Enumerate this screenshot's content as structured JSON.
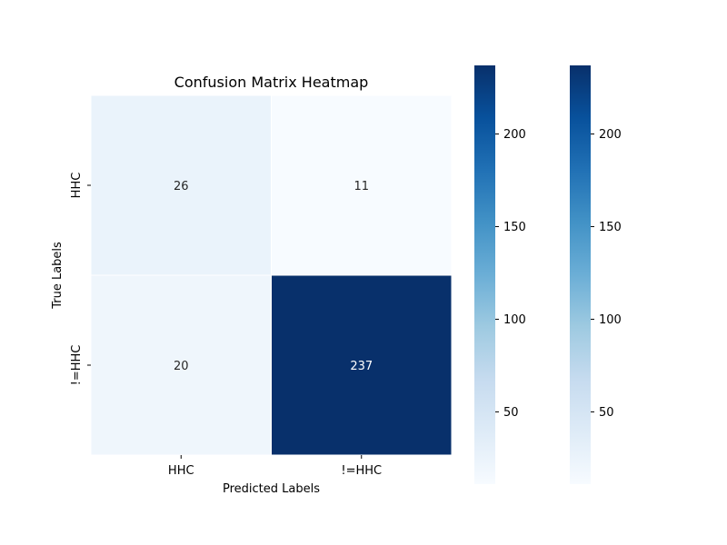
{
  "chart_data": {
    "type": "heatmap",
    "title": "Confusion Matrix Heatmap",
    "xlabel": "Predicted Labels",
    "ylabel": "True Labels",
    "x_categories": [
      "HHC",
      "!=HHC"
    ],
    "y_categories": [
      "HHC",
      "!=HHC"
    ],
    "values": [
      [
        26,
        11
      ],
      [
        20,
        237
      ]
    ],
    "value_labels": [
      [
        "26",
        "11"
      ],
      [
        "20",
        "237"
      ]
    ],
    "colormap": "Blues",
    "colormap_stops": [
      "#f7fbff",
      "#deebf7",
      "#c6dbef",
      "#9ecae1",
      "#6baed6",
      "#4292c6",
      "#2171b5",
      "#08519c",
      "#08306b"
    ],
    "color_range": [
      11,
      237
    ],
    "colorbars": [
      {
        "ticks": [
          50,
          100,
          150,
          200
        ],
        "tick_labels": [
          "50",
          "100",
          "150",
          "200"
        ]
      },
      {
        "ticks": [
          50,
          100,
          150,
          200
        ],
        "tick_labels": [
          "50",
          "100",
          "150",
          "200"
        ]
      }
    ],
    "cell_gridlines": true,
    "grid_color": "#ffffff"
  }
}
